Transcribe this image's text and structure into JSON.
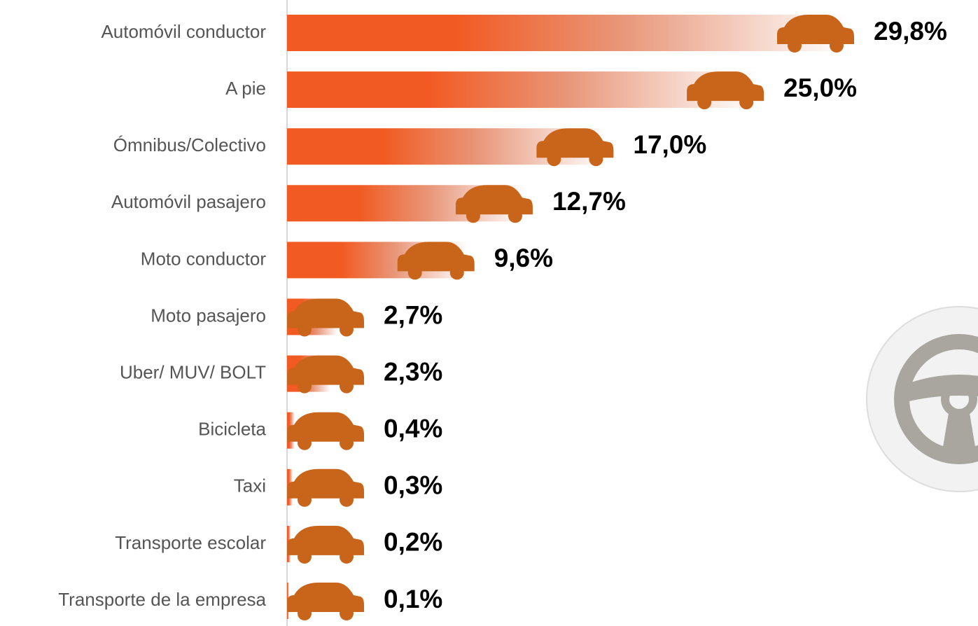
{
  "chart_data": {
    "type": "bar",
    "categories": [
      "Automóvil conductor",
      "A pie",
      "Ómnibus/Colectivo",
      "Automóvil pasajero",
      "Moto conductor",
      "Moto pasajero",
      "Uber/ MUV/ BOLT",
      "Bicicleta",
      "Taxi",
      "Transporte escolar",
      "Transporte de la empresa"
    ],
    "values": [
      29.8,
      25.0,
      17.0,
      12.7,
      9.6,
      2.7,
      2.3,
      0.4,
      0.3,
      0.2,
      0.1
    ],
    "value_labels": [
      "29,8%",
      "25,0%",
      "17,0%",
      "12,7%",
      "9,6%",
      "2,7%",
      "2,3%",
      "0,4%",
      "0,3%",
      "0,2%",
      "0,1%"
    ],
    "color": "#f15a22"
  }
}
